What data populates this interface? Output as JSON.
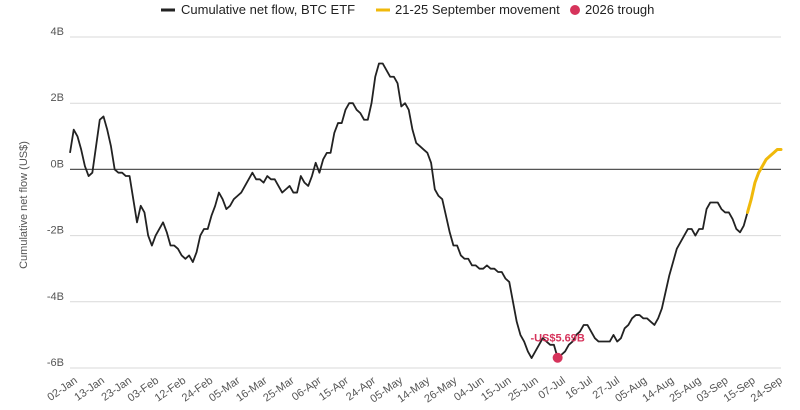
{
  "chart_data": {
    "type": "line",
    "title": "",
    "ylabel": "Cumulative net flow (US$)",
    "xlabel": "",
    "ylim": [
      -6,
      4
    ],
    "y_ticks": [
      {
        "value": 4,
        "label": "4B"
      },
      {
        "value": 2,
        "label": "2B"
      },
      {
        "value": 0,
        "label": "0B"
      },
      {
        "value": -2,
        "label": "-2B"
      },
      {
        "value": -4,
        "label": "-4B"
      },
      {
        "value": -6,
        "label": "-6B"
      }
    ],
    "x_tick_labels": [
      "02-Jan",
      "13-Jan",
      "23-Jan",
      "03-Feb",
      "12-Feb",
      "24-Feb",
      "05-Mar",
      "16-Mar",
      "25-Mar",
      "06-Apr",
      "15-Apr",
      "24-Apr",
      "05-May",
      "14-May",
      "26-May",
      "04-Jun",
      "15-Jun",
      "25-Jun",
      "07-Jul",
      "16-Jul",
      "27-Jul",
      "05-Aug",
      "14-Aug",
      "25-Aug",
      "03-Sep",
      "15-Sep",
      "24-Sep"
    ],
    "grid": true,
    "legend_position": "top",
    "colors": {
      "main": "#222222",
      "highlight": "#F0B90B",
      "trough": "#D6335B",
      "grid": "#d9d9d9",
      "zero": "#555555"
    },
    "series": [
      {
        "name": "Cumulative net flow, BTC ETF",
        "values": [
          0.5,
          1.2,
          1.0,
          0.6,
          0.1,
          -0.2,
          -0.1,
          0.7,
          1.5,
          1.6,
          1.2,
          0.7,
          0.0,
          -0.1,
          -0.1,
          -0.2,
          -0.2,
          -0.9,
          -1.6,
          -1.1,
          -1.3,
          -2.0,
          -2.3,
          -2.0,
          -1.8,
          -1.6,
          -1.9,
          -2.3,
          -2.3,
          -2.4,
          -2.6,
          -2.7,
          -2.6,
          -2.8,
          -2.5,
          -2.0,
          -1.8,
          -1.8,
          -1.4,
          -1.1,
          -0.7,
          -0.9,
          -1.2,
          -1.1,
          -0.9,
          -0.8,
          -0.7,
          -0.5,
          -0.3,
          -0.1,
          -0.3,
          -0.3,
          -0.4,
          -0.2,
          -0.3,
          -0.3,
          -0.5,
          -0.7,
          -0.6,
          -0.5,
          -0.7,
          -0.7,
          -0.2,
          -0.4,
          -0.5,
          -0.2,
          0.2,
          -0.1,
          0.3,
          0.5,
          0.5,
          1.1,
          1.4,
          1.4,
          1.8,
          2.0,
          2.0,
          1.8,
          1.7,
          1.5,
          1.5,
          2.0,
          2.8,
          3.2,
          3.2,
          3.0,
          2.8,
          2.8,
          2.6,
          1.9,
          2.0,
          1.8,
          1.2,
          0.8,
          0.7,
          0.6,
          0.5,
          0.2,
          -0.6,
          -0.8,
          -0.9,
          -1.4,
          -1.9,
          -2.3,
          -2.3,
          -2.6,
          -2.7,
          -2.7,
          -2.9,
          -2.9,
          -3.0,
          -3.0,
          -2.9,
          -3.0,
          -3.0,
          -3.1,
          -3.1,
          -3.3,
          -3.4,
          -4.0,
          -4.6,
          -5.0,
          -5.2,
          -5.5,
          -5.7,
          -5.5,
          -5.3,
          -5.1,
          -5.2,
          -5.3,
          -5.3,
          -5.69,
          -5.6,
          -5.5,
          -5.3,
          -5.2,
          -5.0,
          -4.9,
          -4.7,
          -4.7,
          -4.9,
          -5.1,
          -5.2,
          -5.2,
          -5.2,
          -5.2,
          -5.0,
          -5.2,
          -5.1,
          -4.8,
          -4.7,
          -4.5,
          -4.4,
          -4.4,
          -4.5,
          -4.5,
          -4.6,
          -4.7,
          -4.5,
          -4.2,
          -3.7,
          -3.2,
          -2.8,
          -2.4,
          -2.2,
          -2.0,
          -1.8,
          -1.8,
          -2.0,
          -1.8,
          -1.8,
          -1.2,
          -1.0,
          -1.0,
          -1.0,
          -1.2,
          -1.3,
          -1.3,
          -1.5,
          -1.8,
          -1.9,
          -1.7,
          -1.3
        ]
      },
      {
        "name": "21-25 September movement",
        "values": [
          -1.3,
          -0.9,
          -0.4,
          -0.1,
          0.1,
          0.3,
          0.4,
          0.5,
          0.6,
          0.6
        ]
      }
    ],
    "trough": {
      "name": "2026 trough",
      "value": -5.69,
      "index": 131,
      "label": "-US$5.69B"
    }
  }
}
